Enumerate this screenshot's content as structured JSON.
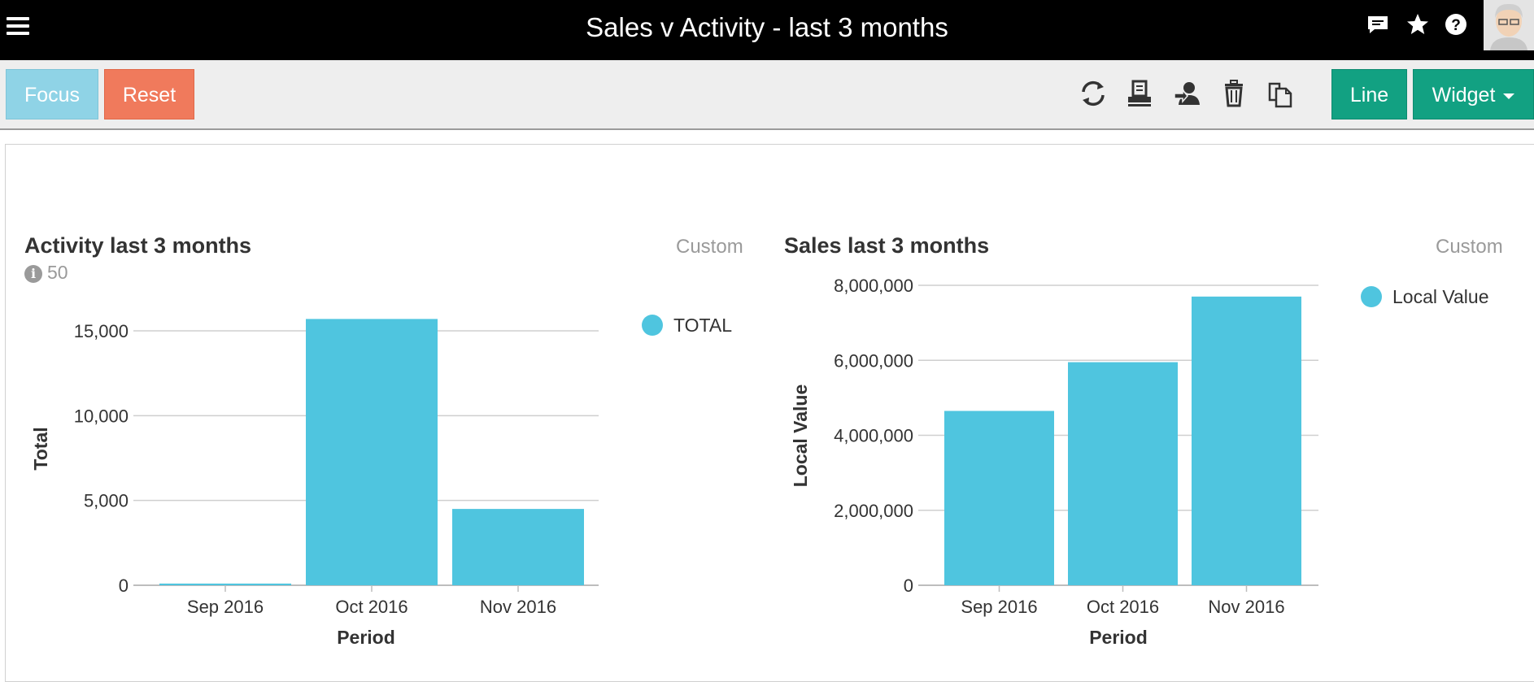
{
  "header": {
    "title": "Sales v Activity - last 3 months",
    "icons": [
      "menu-icon",
      "chat-icon",
      "star-icon",
      "help-icon",
      "avatar"
    ]
  },
  "toolbar": {
    "focus_label": "Focus",
    "reset_label": "Reset",
    "line_label": "Line",
    "widget_label": "Widget",
    "icons": [
      "refresh-icon",
      "print-icon",
      "share-icon",
      "delete-icon",
      "copy-icon"
    ]
  },
  "colors": {
    "bar": "#4fc5df",
    "focus": "#8fd3e6",
    "reset": "#f07a5c",
    "primary": "#12a182"
  },
  "widgets": {
    "activity": {
      "title": "Activity last 3 months",
      "custom_label": "Custom",
      "info_value": "50"
    },
    "sales": {
      "title": "Sales last 3 months",
      "custom_label": "Custom"
    }
  },
  "chart_data": [
    {
      "type": "bar",
      "title": "Activity last 3 months",
      "categories": [
        "Sep 2016",
        "Oct 2016",
        "Nov 2016"
      ],
      "series": [
        {
          "name": "TOTAL",
          "values": [
            100,
            15700,
            4500
          ]
        }
      ],
      "xlabel": "Period",
      "ylabel": "Total",
      "ylim": [
        0,
        15000
      ],
      "yticks": [
        0,
        5000,
        10000,
        15000
      ],
      "ytick_labels": [
        "0",
        "5,000",
        "10,000",
        "15,000"
      ],
      "grid": true,
      "legend": "top-right"
    },
    {
      "type": "bar",
      "title": "Sales last 3 months",
      "categories": [
        "Sep 2016",
        "Oct 2016",
        "Nov 2016"
      ],
      "series": [
        {
          "name": "Local Value",
          "values": [
            4650000,
            5950000,
            7700000
          ]
        }
      ],
      "xlabel": "Period",
      "ylabel": "Local Value",
      "ylim": [
        0,
        8000000
      ],
      "yticks": [
        0,
        2000000,
        4000000,
        6000000,
        8000000
      ],
      "ytick_labels": [
        "0",
        "2,000,000",
        "4,000,000",
        "6,000,000",
        "8,000,000"
      ],
      "grid": true,
      "legend": "top-right"
    }
  ]
}
